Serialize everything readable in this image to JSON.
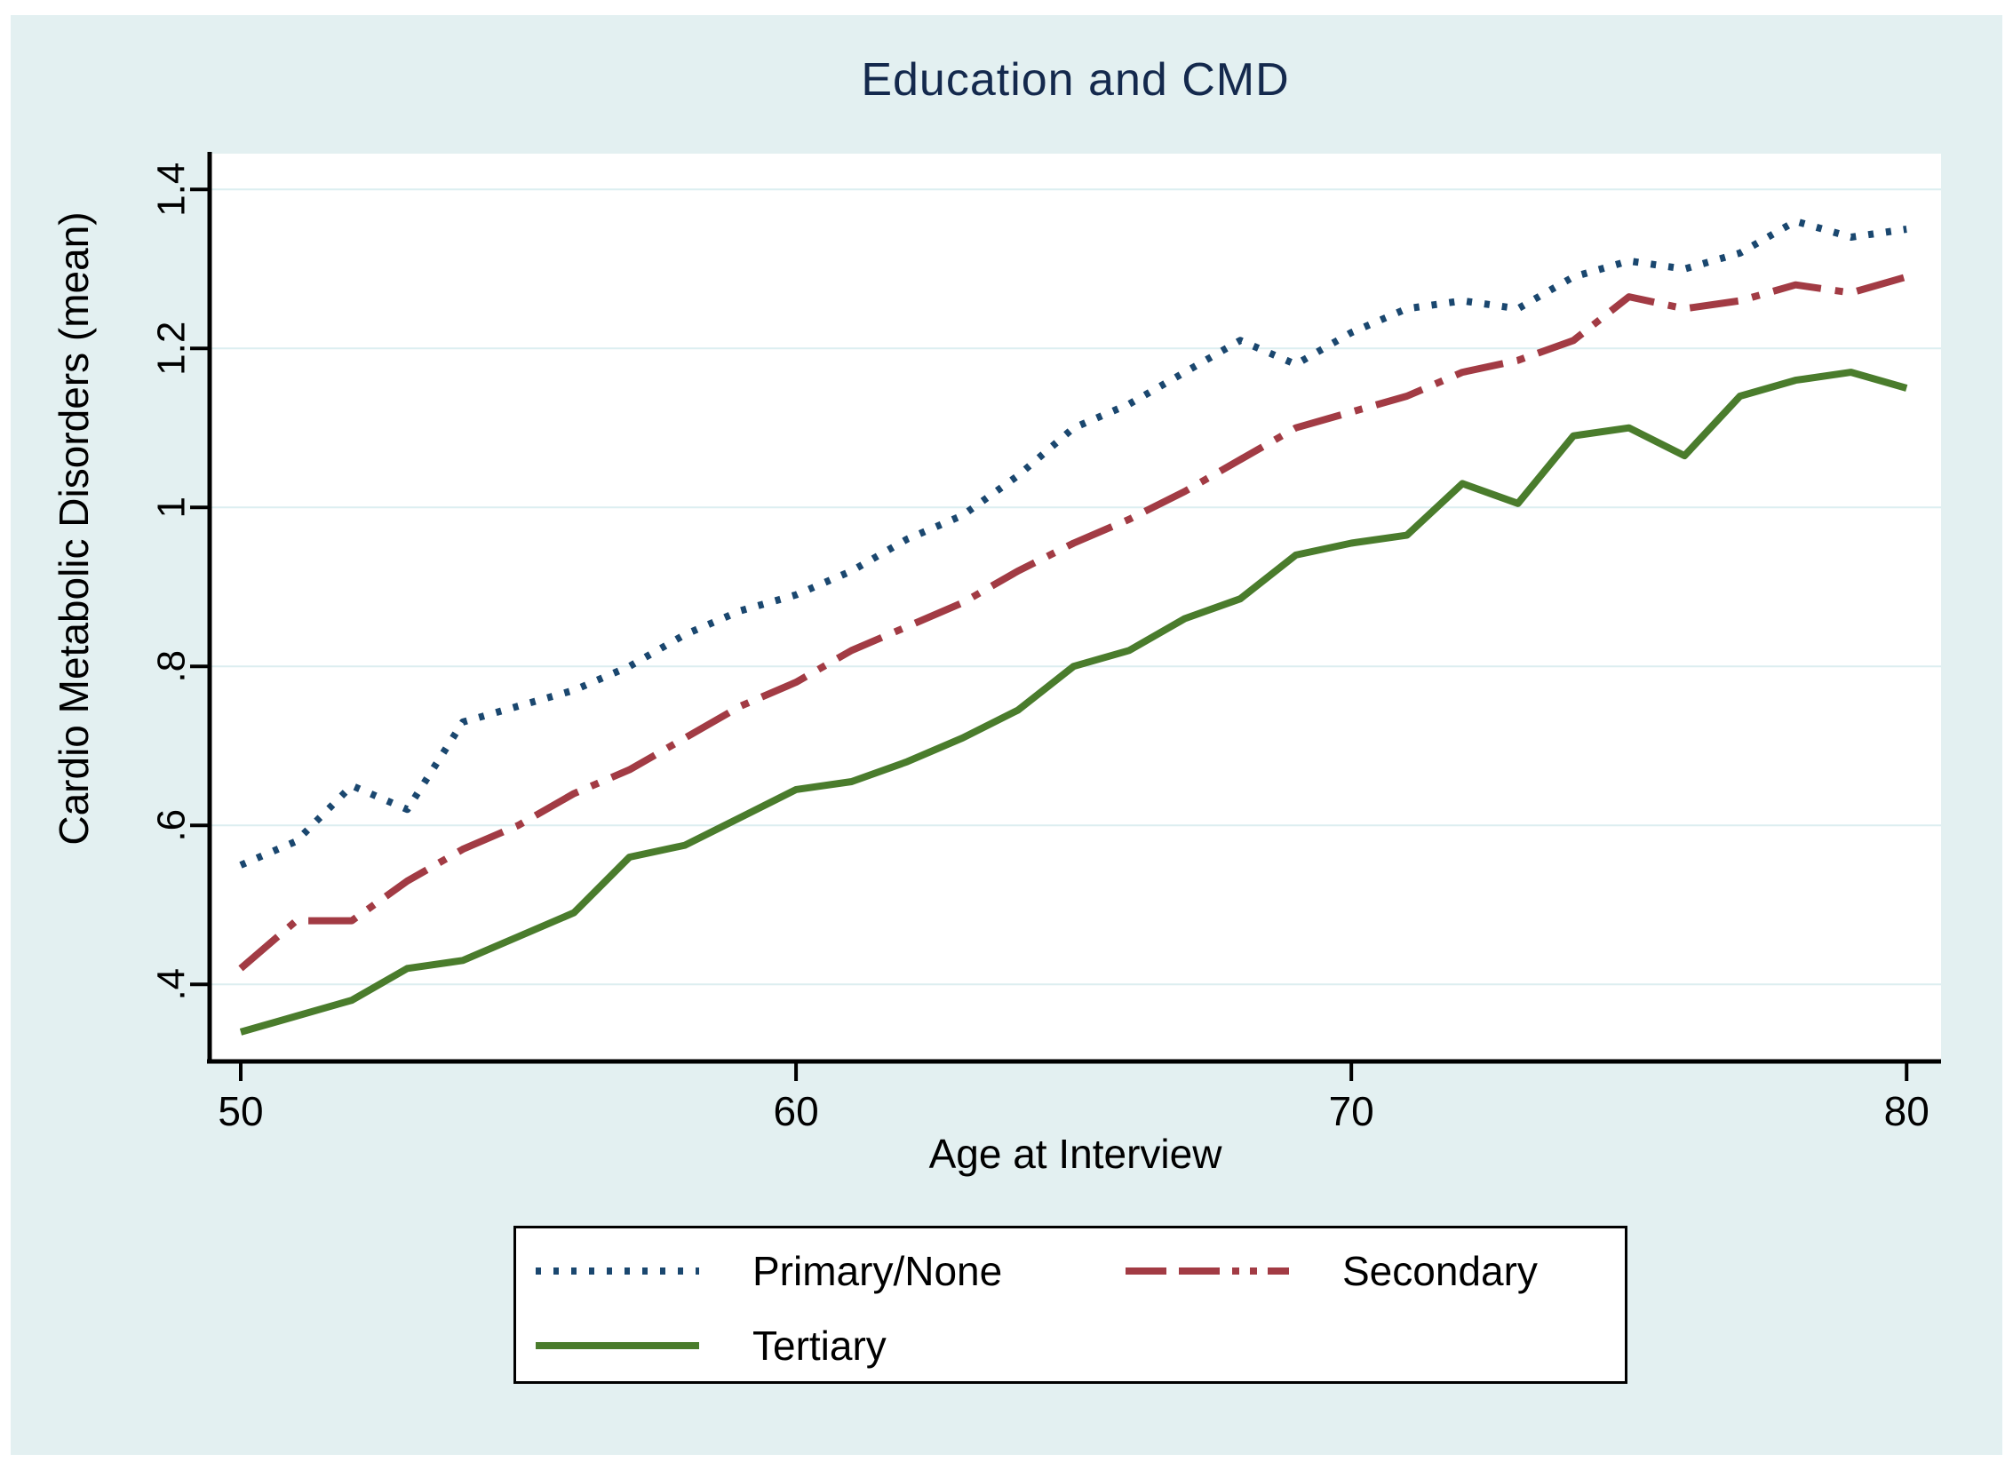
{
  "figure": {
    "title": "Education and CMD",
    "background_color": "#e3f0f1",
    "plot_background_color": "#ffffff",
    "gridline_color": "#dceef0",
    "axis_color": "#000000",
    "title_color": "#14294d"
  },
  "axes": {
    "x_label": "Age at Interview",
    "y_label": "Cardio Metabolic Disorders (mean)"
  },
  "legend": {
    "items": [
      {
        "label": "Primary/None",
        "color": "#1a476f",
        "dash": "dotted"
      },
      {
        "label": "Secondary",
        "color": "#a23b44",
        "dash": "dash-dot"
      },
      {
        "label": "Tertiary",
        "color": "#4a7c2c",
        "dash": "solid"
      }
    ]
  },
  "chart_data": {
    "type": "line",
    "title": "Education and CMD",
    "xlabel": "Age at Interview",
    "ylabel": "Cardio Metabolic Disorders (mean)",
    "grid": "horizontal",
    "legend_position": "below",
    "xlim": [
      49.44,
      80.62
    ],
    "ylim": [
      0.303,
      1.445
    ],
    "x_ticks": [
      50,
      60,
      70,
      80
    ],
    "x_tick_labels": [
      "50",
      "60",
      "70",
      "80"
    ],
    "y_ticks": [
      0.4,
      0.6,
      0.8,
      1.0,
      1.2,
      1.4
    ],
    "y_tick_labels": [
      ".4",
      ".6",
      ".8",
      "1",
      "1.2",
      "1.4"
    ],
    "x": [
      50,
      51,
      52,
      53,
      54,
      55,
      56,
      57,
      58,
      59,
      60,
      61,
      62,
      63,
      64,
      65,
      66,
      67,
      68,
      69,
      70,
      71,
      72,
      73,
      74,
      75,
      76,
      77,
      78,
      79,
      80
    ],
    "series": [
      {
        "name": "Primary/None",
        "color": "#1a476f",
        "dash": "dotted",
        "values": [
          0.55,
          0.58,
          0.65,
          0.62,
          0.73,
          0.75,
          0.77,
          0.8,
          0.84,
          0.87,
          0.89,
          0.92,
          0.96,
          0.99,
          1.04,
          1.1,
          1.13,
          1.17,
          1.21,
          1.18,
          1.22,
          1.25,
          1.26,
          1.25,
          1.29,
          1.31,
          1.3,
          1.32,
          1.36,
          1.34,
          1.35
        ]
      },
      {
        "name": "Secondary",
        "color": "#a23b44",
        "dash": "dash-dot",
        "values": [
          0.42,
          0.48,
          0.48,
          0.53,
          0.57,
          0.6,
          0.64,
          0.67,
          0.71,
          0.75,
          0.78,
          0.82,
          0.85,
          0.88,
          0.92,
          0.955,
          0.985,
          1.02,
          1.06,
          1.1,
          1.12,
          1.14,
          1.17,
          1.185,
          1.21,
          1.265,
          1.25,
          1.26,
          1.28,
          1.27,
          1.29
        ]
      },
      {
        "name": "Tertiary",
        "color": "#4a7c2c",
        "dash": "solid",
        "values": [
          0.34,
          0.36,
          0.38,
          0.42,
          0.43,
          0.46,
          0.49,
          0.56,
          0.575,
          0.61,
          0.645,
          0.655,
          0.68,
          0.71,
          0.745,
          0.8,
          0.82,
          0.86,
          0.885,
          0.94,
          0.955,
          0.965,
          1.03,
          1.005,
          1.09,
          1.1,
          1.065,
          1.14,
          1.16,
          1.17,
          1.15
        ]
      }
    ]
  }
}
